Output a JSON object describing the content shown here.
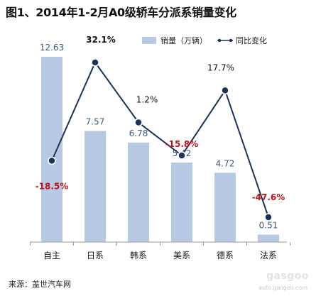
{
  "title": "图1、2014年1-2月A0级轿车分派系销量变化",
  "source": "来源：盖世汽车网",
  "watermark": {
    "logo": "gasgoo",
    "url": "auto.gasgoo.com"
  },
  "colors": {
    "bar": "#b8c9e3",
    "line": "#1d3257",
    "marker": "#1d3257",
    "positive_label": "#111111",
    "negative_label": "#c0141c",
    "bar_label": "#3d5a80"
  },
  "chart_data": {
    "type": "bar",
    "categories": [
      "自主",
      "日系",
      "韩系",
      "美系",
      "德系",
      "法系"
    ],
    "series": [
      {
        "name": "销量（万辆）",
        "type": "bar",
        "values": [
          12.63,
          7.57,
          6.78,
          5.42,
          4.72,
          0.51
        ]
      },
      {
        "name": "同比变化",
        "type": "line",
        "values": [
          -18.5,
          32.1,
          1.2,
          -15.8,
          17.7,
          -47.6
        ],
        "labels": [
          "-18.5%",
          "32.1%",
          "1.2%",
          "-15.8%",
          "17.7%",
          "-47.6%"
        ]
      }
    ],
    "legend": [
      "销量（万辆）",
      "同比变化"
    ],
    "legend_position": "top-right",
    "grid": false
  }
}
